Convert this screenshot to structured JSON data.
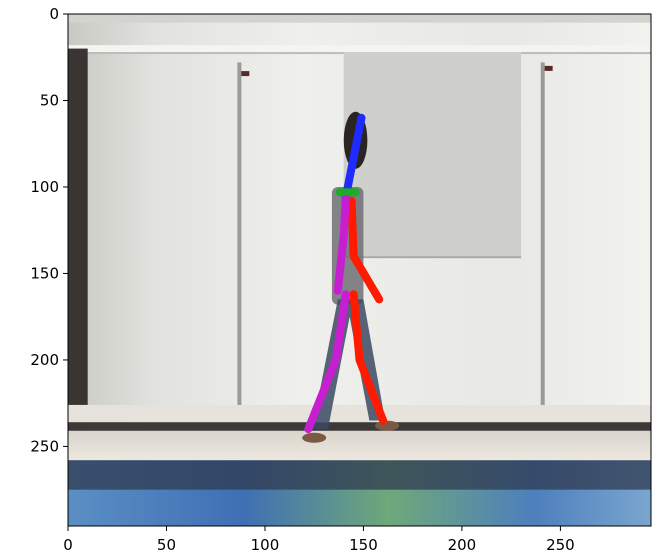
{
  "chart_data": {
    "type": "image",
    "title": "",
    "xlabel": "",
    "ylabel": "",
    "xlim": [
      0,
      296
    ],
    "ylim": [
      296,
      0
    ],
    "y_inverted": true,
    "grid": false,
    "x_ticks": [
      0,
      50,
      100,
      150,
      200,
      250
    ],
    "y_ticks": [
      0,
      50,
      100,
      150,
      200,
      250
    ],
    "x_tick_labels": [
      "0",
      "50",
      "100",
      "150",
      "200",
      "250"
    ],
    "y_tick_labels": [
      "0",
      "50",
      "100",
      "150",
      "200",
      "250"
    ],
    "skeleton_segments": [
      {
        "part": "head-neck",
        "color": "#1f2bff",
        "points": [
          [
            149,
            60
          ],
          [
            141,
            106
          ]
        ]
      },
      {
        "part": "shoulder",
        "color": "#1faa2a",
        "points": [
          [
            138,
            103
          ],
          [
            146,
            103
          ]
        ]
      },
      {
        "part": "right-arm",
        "color": "#ff1a00",
        "points": [
          [
            144,
            108
          ],
          [
            145,
            140
          ],
          [
            158,
            165
          ]
        ]
      },
      {
        "part": "left-arm",
        "color": "#c81ed2",
        "points": [
          [
            141,
            107
          ],
          [
            140,
            128
          ],
          [
            137,
            160
          ]
        ]
      },
      {
        "part": "right-leg",
        "color": "#ff1a00",
        "points": [
          [
            145,
            162
          ],
          [
            148,
            200
          ],
          [
            160,
            235
          ]
        ]
      },
      {
        "part": "left-leg",
        "color": "#c81ed2",
        "points": [
          [
            141,
            162
          ],
          [
            136,
            200
          ],
          [
            122,
            240
          ]
        ]
      }
    ],
    "colors": {
      "blue": "#1f2bff",
      "green": "#1faa2a",
      "red": "#ff1a00",
      "magenta": "#c81ed2"
    }
  }
}
